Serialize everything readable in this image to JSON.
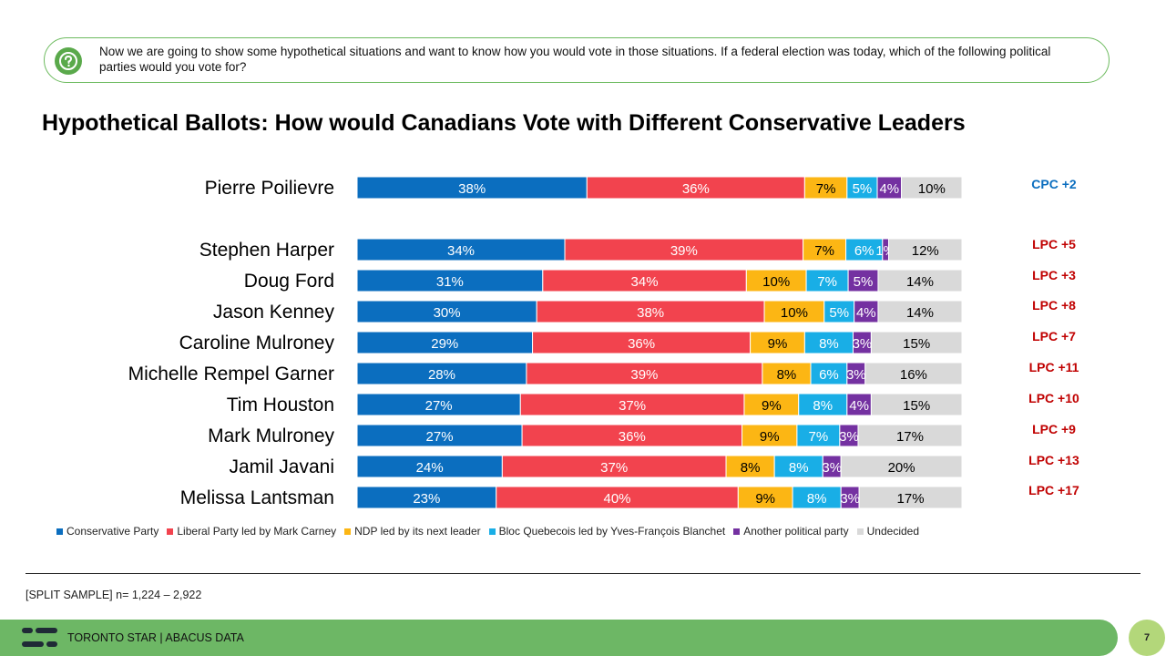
{
  "question": {
    "icon": "question-bubble-icon",
    "text": "Now we are going to show some hypothetical situations and want to know how you would vote in those situations. If a federal election was today, which of the following political parties would you vote for?"
  },
  "title": "Hypothetical Ballots: How would Canadians Vote with Different Conservative Leaders",
  "chart_data": {
    "type": "bar",
    "orientation": "horizontal-stacked-100",
    "categories": [
      "Pierre Poilievre",
      "Stephen Harper",
      "Doug Ford",
      "Jason Kenney",
      "Caroline Mulroney",
      "Michelle Rempel Garner",
      "Tim Houston",
      "Mark Mulroney",
      "Jamil Javani",
      "Melissa Lantsman"
    ],
    "series": [
      {
        "name": "Conservative Party",
        "color": "#0b6ebf",
        "values": [
          38,
          34,
          31,
          30,
          29,
          28,
          27,
          27,
          24,
          23
        ]
      },
      {
        "name": "Liberal Party led by Mark Carney",
        "color": "#f2434e",
        "values": [
          36,
          39,
          34,
          38,
          36,
          39,
          37,
          36,
          37,
          40
        ]
      },
      {
        "name": "NDP led by its next leader",
        "color": "#fcb614",
        "values": [
          7,
          7,
          10,
          10,
          9,
          8,
          9,
          9,
          8,
          9
        ]
      },
      {
        "name": "Bloc Quebecois led by Yves-François Blanchet",
        "color": "#19aee6",
        "values": [
          5,
          6,
          7,
          5,
          8,
          6,
          8,
          7,
          8,
          8
        ]
      },
      {
        "name": "Another political party",
        "color": "#7431a1",
        "values": [
          4,
          1,
          5,
          4,
          3,
          3,
          4,
          3,
          3,
          3
        ]
      },
      {
        "name": "Undecided",
        "color": "#d9d9d9",
        "values": [
          10,
          12,
          14,
          14,
          15,
          16,
          15,
          17,
          20,
          17
        ]
      }
    ],
    "value_suffix": "%",
    "leads": [
      {
        "text": "CPC +2",
        "color": "#0b6ebf"
      },
      {
        "text": "LPC +5",
        "color": "#c00000"
      },
      {
        "text": "LPC +3",
        "color": "#c00000"
      },
      {
        "text": "LPC +8",
        "color": "#c00000"
      },
      {
        "text": "LPC +7",
        "color": "#c00000"
      },
      {
        "text": "LPC +11",
        "color": "#c00000"
      },
      {
        "text": "LPC +10",
        "color": "#c00000"
      },
      {
        "text": "LPC +9",
        "color": "#c00000"
      },
      {
        "text": "LPC +13",
        "color": "#c00000"
      },
      {
        "text": "LPC +17",
        "color": "#c00000"
      }
    ],
    "legend_position": "bottom",
    "grid": false
  },
  "sample_note": "[SPLIT SAMPLE] n= 1,224 – 2,922",
  "footer": {
    "logo_icon": "abacus-logo-icon",
    "text": "TORONTO STAR | ABACUS DATA",
    "page_number": "7",
    "color": "#6db765"
  }
}
